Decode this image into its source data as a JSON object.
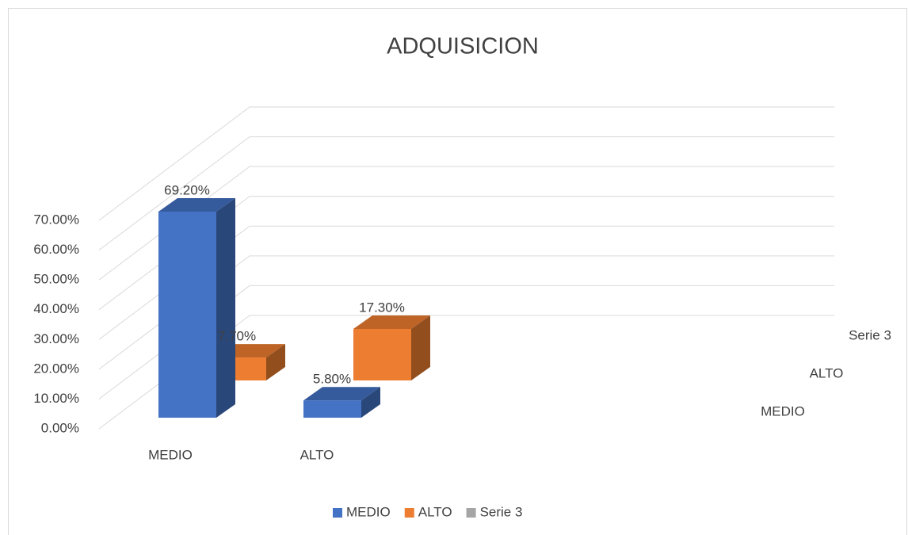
{
  "chart_data": {
    "type": "bar3d",
    "title": "ADQUISICION",
    "categories": [
      "MEDIO",
      "ALTO"
    ],
    "series": [
      {
        "name": "MEDIO",
        "color": "#4472c4",
        "values": [
          69.2,
          5.8
        ],
        "value_labels": [
          "69.20%",
          "5.80%"
        ]
      },
      {
        "name": "ALTO",
        "color": "#ed7d31",
        "values": [
          7.7,
          17.3
        ],
        "value_labels": [
          "7.70%",
          "17.30%"
        ]
      },
      {
        "name": "Serie 3",
        "color": "#a5a5a5",
        "values": [
          null,
          null
        ]
      }
    ],
    "ylim": [
      0,
      70
    ],
    "yticks": [
      {
        "value": 0,
        "label": "0.00%"
      },
      {
        "value": 10,
        "label": "10.00%"
      },
      {
        "value": 20,
        "label": "20.00%"
      },
      {
        "value": 30,
        "label": "30.00%"
      },
      {
        "value": 40,
        "label": "40.00%"
      },
      {
        "value": 50,
        "label": "50.00%"
      },
      {
        "value": 60,
        "label": "60.00%"
      },
      {
        "value": 70,
        "label": "70.00%"
      }
    ],
    "grid": true,
    "legend": "bottom"
  }
}
